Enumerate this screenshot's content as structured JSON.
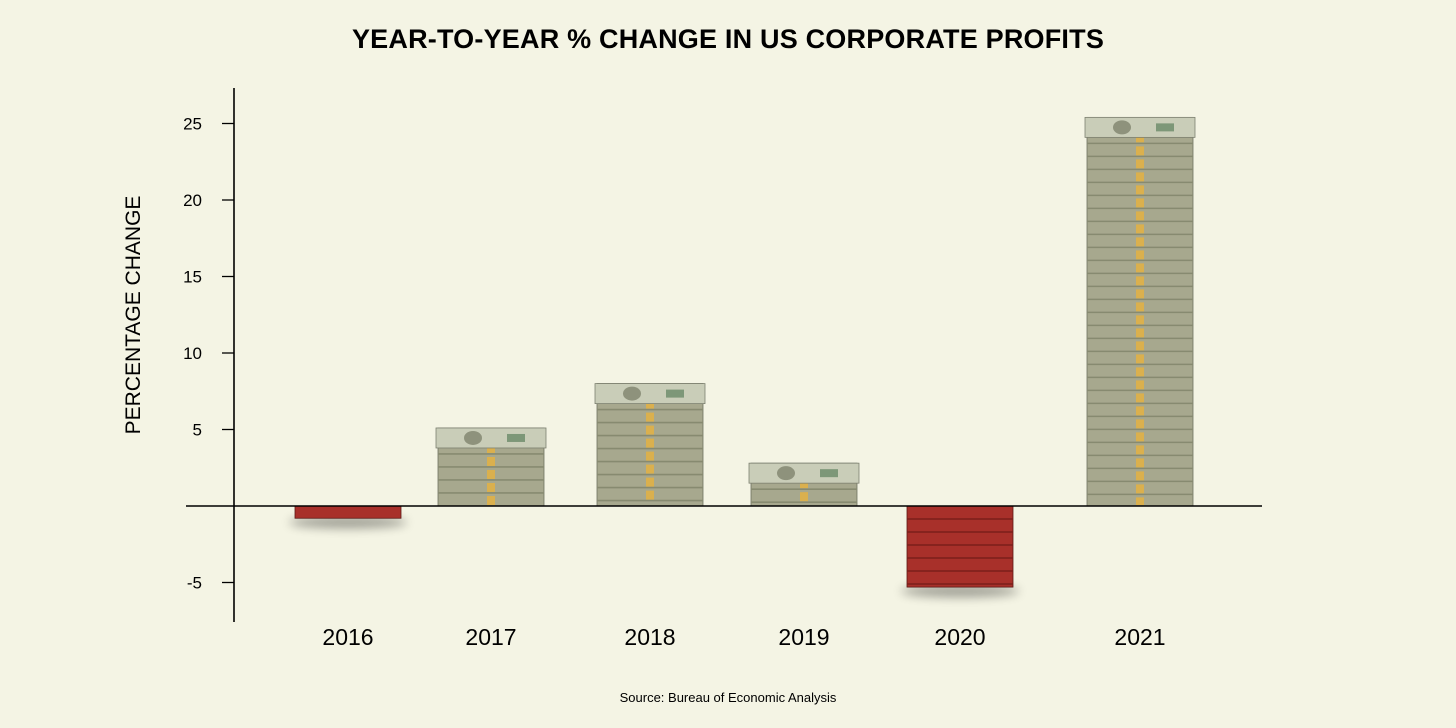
{
  "chart_data": {
    "type": "bar",
    "title": "YEAR-TO-YEAR % CHANGE IN US CORPORATE PROFITS",
    "ylabel": "PERCENTAGE CHANGE",
    "xlabel": "",
    "categories": [
      "2016",
      "2017",
      "2018",
      "2019",
      "2020",
      "2021"
    ],
    "values": [
      -0.8,
      5.1,
      8.0,
      2.8,
      -5.3,
      25.4
    ],
    "ylim": [
      -7.5,
      27.5
    ],
    "yticks": [
      -5,
      5,
      10,
      15,
      20,
      25
    ],
    "ytick_labels": [
      "-5",
      "5",
      "10",
      "15",
      "20",
      "25"
    ],
    "grid": false,
    "legend": "none",
    "source": "Source: Bureau of Economic Analysis",
    "colors": {
      "background": "#f4f4e4",
      "positive_bar": "#a7a88e",
      "positive_band": "#878a70",
      "negative_bar": "#a8302a",
      "negative_band": "#7a1f1b",
      "bill_strap": "#e3b143",
      "axis": "#000000"
    }
  }
}
